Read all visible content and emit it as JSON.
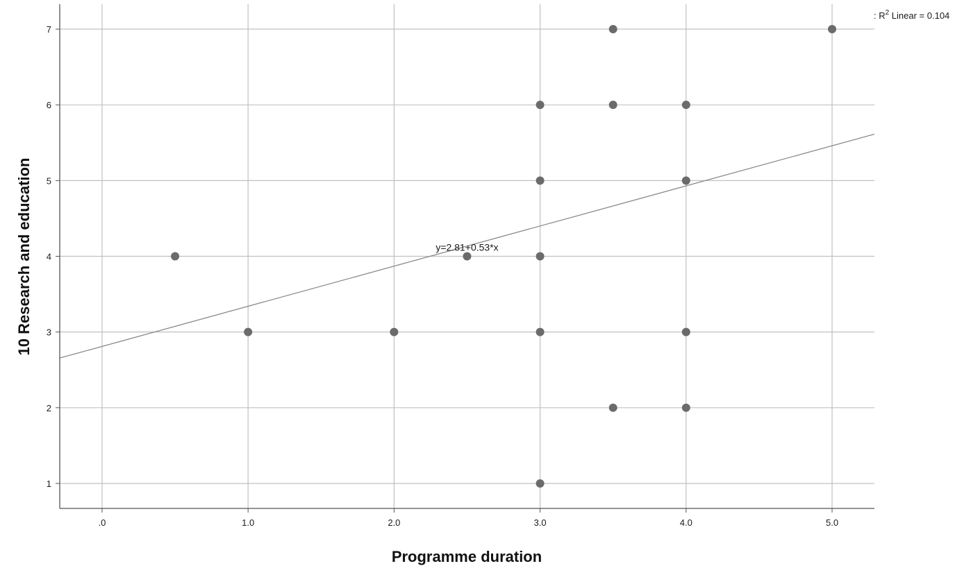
{
  "chart_data": {
    "type": "scatter",
    "xlabel": "Programme duration",
    "ylabel": "10 Research and education",
    "xlim": [
      -0.29,
      5.29
    ],
    "ylim": [
      0.67,
      7.33
    ],
    "x_ticks": [
      0,
      1,
      2,
      3,
      4,
      5
    ],
    "x_tick_labels": [
      ".0",
      "1.0",
      "2.0",
      "3.0",
      "4.0",
      "5.0"
    ],
    "y_ticks": [
      1,
      2,
      3,
      4,
      5,
      6,
      7
    ],
    "y_tick_labels": [
      "1",
      "2",
      "3",
      "4",
      "5",
      "6",
      "7"
    ],
    "grid": true,
    "points": [
      {
        "x": 0.5,
        "y": 4
      },
      {
        "x": 1.0,
        "y": 3
      },
      {
        "x": 2.0,
        "y": 3
      },
      {
        "x": 2.5,
        "y": 4
      },
      {
        "x": 3.0,
        "y": 6
      },
      {
        "x": 3.0,
        "y": 5
      },
      {
        "x": 3.0,
        "y": 4
      },
      {
        "x": 3.0,
        "y": 3
      },
      {
        "x": 3.0,
        "y": 1
      },
      {
        "x": 3.5,
        "y": 7
      },
      {
        "x": 3.5,
        "y": 6
      },
      {
        "x": 3.5,
        "y": 2
      },
      {
        "x": 4.0,
        "y": 6
      },
      {
        "x": 4.0,
        "y": 5
      },
      {
        "x": 4.0,
        "y": 3
      },
      {
        "x": 4.0,
        "y": 2
      },
      {
        "x": 5.0,
        "y": 7
      }
    ],
    "fit_line": {
      "intercept": 2.81,
      "slope": 0.53
    },
    "fit_equation_label": "y=2.81+0.53*x",
    "legend": {
      "prefix": ": R",
      "superscript": "2",
      "text": " Linear = 0.104",
      "placement": "top-right"
    },
    "colors": {
      "point": "#6b6b6b",
      "grid": "#c0c0c0",
      "axis": "#555555",
      "fit_line": "#8a8a8a"
    }
  }
}
